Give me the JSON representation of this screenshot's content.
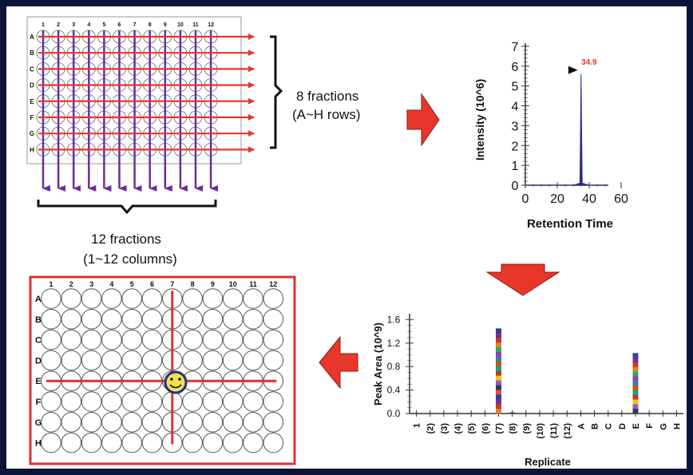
{
  "colors": {
    "red_arrow": "#e8362b",
    "purple_arrow": "#6a2ca0",
    "plate_border_red": "#e03030",
    "well_stroke": "#555555",
    "peak_blue": "#2b2b8c",
    "peak_label": "#e8362b",
    "smiley_face": "#f2e14a",
    "smiley_outline": "#1f2f8a"
  },
  "icons": {
    "flow_arrow": "red-block-arrow",
    "smiley": "smiley-face-icon"
  },
  "top_plate": {
    "columns": [
      "1",
      "2",
      "3",
      "4",
      "5",
      "6",
      "7",
      "8",
      "9",
      "10",
      "11",
      "12"
    ],
    "rows": [
      "A",
      "B",
      "C",
      "D",
      "E",
      "F",
      "G",
      "H"
    ]
  },
  "row_brace_label": [
    "8 fractions",
    "(A~H rows)"
  ],
  "column_brace_label": [
    "12 fractions",
    "(1~12 columns)"
  ],
  "chart_data": [
    {
      "type": "line",
      "title": "",
      "xlabel": "Retention Time",
      "ylabel": "Intensity (10^6)",
      "xlim": [
        0,
        60
      ],
      "ylim": [
        0,
        7
      ],
      "x_ticks": [
        "0",
        "20",
        "40",
        "60"
      ],
      "y_ticks": [
        "0",
        "1",
        "2",
        "3",
        "4",
        "5",
        "6",
        "7"
      ],
      "series": [
        {
          "x": [
            0,
            30,
            34.2,
            34.6,
            34.9,
            35.2,
            35.6,
            40,
            52
          ],
          "y": [
            0,
            0,
            0.1,
            3.0,
            5.6,
            3.0,
            0.1,
            0,
            0
          ]
        }
      ],
      "annotation": {
        "x": 34.9,
        "y": 5.6,
        "label": "34.9"
      }
    },
    {
      "type": "bar",
      "title": "",
      "xlabel": "Replicate",
      "ylabel": "Peak Area (10^9)",
      "ylim": [
        0,
        1.7
      ],
      "y_ticks": [
        "0.0",
        "0.4",
        "0.8",
        "1.2",
        "1.6"
      ],
      "categories": [
        "1",
        "(2)",
        "(3)",
        "(4)",
        "(5)",
        "(6)",
        "(7)",
        "(8)",
        "(9)",
        "(10)",
        "(11)",
        "(12)",
        "A",
        "B",
        "C",
        "D",
        "E",
        "F",
        "G",
        "H"
      ],
      "values": [
        0,
        0,
        0,
        0,
        0,
        0,
        1.45,
        0.02,
        0,
        0,
        0,
        0,
        0,
        0,
        0,
        0,
        1.03,
        0,
        0,
        0
      ]
    }
  ],
  "bottom_plate": {
    "columns": [
      "1",
      "2",
      "3",
      "4",
      "5",
      "6",
      "7",
      "8",
      "9",
      "10",
      "11",
      "12"
    ],
    "rows": [
      "A",
      "B",
      "C",
      "D",
      "E",
      "F",
      "G",
      "H"
    ],
    "highlight_row": "E",
    "highlight_column": "7"
  }
}
